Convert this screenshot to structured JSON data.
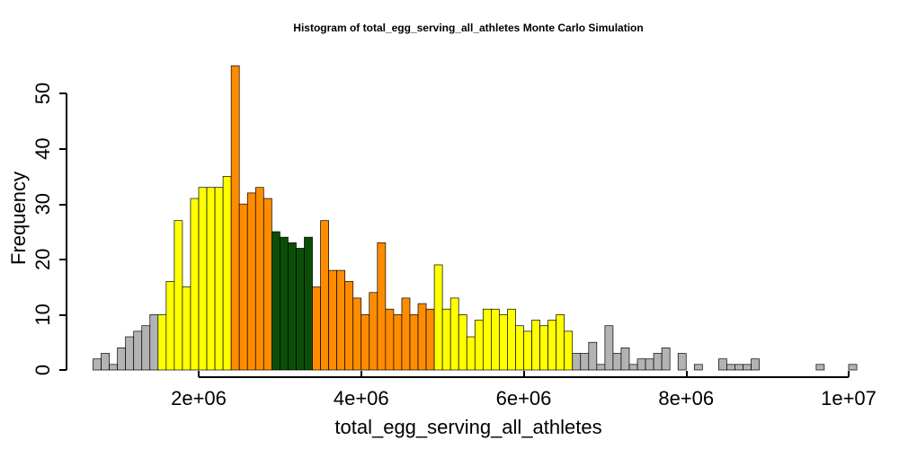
{
  "chart_data": {
    "type": "bar",
    "title": "Histogram of  total_egg_serving_all_athletes  Monte Carlo Simulation",
    "xlabel": "total_egg_serving_all_athletes",
    "ylabel": "Frequency",
    "xlim": [
      0,
      10000000
    ],
    "ylim": [
      0,
      55
    ],
    "bin_start": 700000,
    "bin_width": 100000,
    "x_ticks": [
      {
        "value": 2000000,
        "label": "2e+06"
      },
      {
        "value": 4000000,
        "label": "4e+06"
      },
      {
        "value": 6000000,
        "label": "6e+06"
      },
      {
        "value": 8000000,
        "label": "8e+06"
      },
      {
        "value": 10000000,
        "label": "1e+07"
      }
    ],
    "y_ticks": [
      {
        "value": 0,
        "label": "0"
      },
      {
        "value": 10,
        "label": "10"
      },
      {
        "value": 20,
        "label": "20"
      },
      {
        "value": 30,
        "label": "30"
      },
      {
        "value": 40,
        "label": "40"
      },
      {
        "value": 50,
        "label": "50"
      }
    ],
    "values": [
      2,
      3,
      1,
      4,
      6,
      7,
      8,
      10,
      10,
      16,
      27,
      15,
      31,
      33,
      33,
      33,
      35,
      55,
      30,
      32,
      33,
      31,
      25,
      24,
      23,
      22,
      24,
      15,
      27,
      18,
      18,
      16,
      13,
      10,
      14,
      23,
      11,
      10,
      13,
      10,
      12,
      11,
      19,
      11,
      13,
      10,
      6,
      9,
      11,
      11,
      10,
      11,
      8,
      7,
      9,
      8,
      9,
      10,
      7,
      3,
      3,
      5,
      1,
      8,
      3,
      4,
      1,
      2,
      2,
      3,
      4,
      0,
      3,
      0,
      1,
      0,
      0,
      2,
      1,
      1,
      1,
      2,
      0,
      0,
      0,
      0,
      0,
      0,
      0,
      1,
      0,
      0,
      0,
      1
    ],
    "colors": {
      "gray": "#b3b3b3",
      "yellow": "#ffff00",
      "orange": "#ff8c00",
      "green": "#0a4f05"
    },
    "color_bands": [
      {
        "from": 0,
        "to": 8,
        "color": "gray"
      },
      {
        "from": 8,
        "to": 17,
        "color": "yellow"
      },
      {
        "from": 17,
        "to": 22,
        "color": "orange"
      },
      {
        "from": 22,
        "to": 27,
        "color": "green"
      },
      {
        "from": 27,
        "to": 42,
        "color": "orange"
      },
      {
        "from": 42,
        "to": 59,
        "color": "yellow"
      },
      {
        "from": 59,
        "to": 94,
        "color": "gray"
      }
    ],
    "grid": false,
    "legend": "none"
  }
}
